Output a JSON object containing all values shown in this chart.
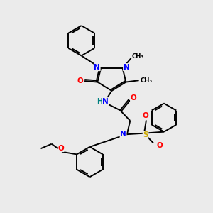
{
  "bg_color": "#ebebeb",
  "atom_colors": {
    "N": "#0000ff",
    "O": "#ff0000",
    "S": "#ccaa00",
    "C": "#000000",
    "H": "#008080"
  },
  "line_color": "#000000",
  "line_width": 1.4,
  "dbo": 0.07
}
